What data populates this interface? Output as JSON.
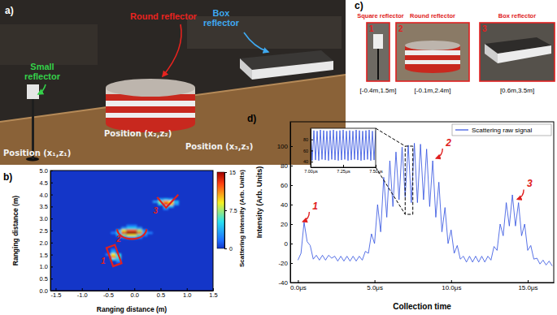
{
  "panel_labels": [
    "a)",
    "b)",
    "c)",
    "d)"
  ],
  "photo_a": {
    "reflectors": [
      {
        "text": "Small reflector",
        "color": "#35d04a"
      },
      {
        "text": "Round reflector",
        "color": "#e8231f"
      },
      {
        "text": "Box reflector",
        "color": "#3fa9f0"
      }
    ],
    "positions": [
      "Position (x₁,z₁)",
      "Position (x₂,z₂)",
      "Position (x₃,z₃)"
    ]
  },
  "photo_c": {
    "color": "#e02020",
    "items": [
      {
        "number": "1",
        "name": "Square reflector",
        "coordinates": "[-0.4m,1.5m]"
      },
      {
        "number": "2",
        "name": "Round reflector",
        "coordinates": "[-0.1m,2.4m]"
      },
      {
        "number": "3",
        "name": "Box reflector",
        "coordinates": "[0.6m,3.5m]"
      }
    ]
  },
  "chart_data": [
    {
      "type": "heatmap",
      "xlabel": "Ranging distance (m)",
      "ylabel": "Ranging distance (m)",
      "xlim": [
        -1.6,
        1.5
      ],
      "ylim": [
        0,
        5
      ],
      "xticks": [
        -1.5,
        {
          "value": -1,
          "label": "-1.0"
        },
        -0.5,
        {
          "value": 0,
          "label": "0.0"
        },
        0.5,
        {
          "value": 1,
          "label": "1.0"
        },
        1.5
      ],
      "yticks": [
        {
          "value": 0,
          "label": "0.0"
        },
        0.5,
        {
          "value": 1,
          "label": "1.0"
        },
        1.5,
        {
          "value": 2,
          "label": "2.0"
        },
        2.5,
        {
          "value": 3,
          "label": "3.0"
        },
        3.5,
        {
          "value": 4,
          "label": "4.0"
        },
        4.5,
        {
          "value": 5,
          "label": "5.0"
        }
      ],
      "cells": {
        "x": [
          -0.5,
          -0.4,
          -0.4,
          -0.4,
          -0.4,
          -0.4,
          -0.3,
          -0.3,
          -0.3,
          -0.3,
          -0.1,
          0,
          -0.2,
          -0.1,
          0,
          0.1,
          -0.3,
          -0.2,
          -0.1,
          0,
          0.1,
          0.2,
          -0.4,
          -0.3,
          -0.2,
          -0.1,
          0,
          0.1,
          0.2,
          0.3,
          -0.3,
          -0.2,
          -0.1,
          0,
          0.1,
          0.2,
          -0.2,
          -0.1,
          0,
          0.1,
          0.5,
          0.6,
          0.7,
          0.4,
          0.5,
          0.6,
          0.7,
          0.8,
          0.5,
          0.6,
          0.7,
          0.8,
          0.6,
          0.7,
          0.6
        ],
        "y": [
          1.5,
          1.7,
          1.6,
          1.5,
          1.4,
          1.3,
          1.5,
          1.4,
          1.3,
          1.2,
          2.7,
          2.7,
          2.6,
          2.6,
          2.6,
          2.6,
          2.5,
          2.5,
          2.5,
          2.5,
          2.5,
          2.5,
          2.4,
          2.4,
          2.4,
          2.4,
          2.4,
          2.4,
          2.4,
          2.4,
          2.3,
          2.3,
          2.3,
          2.3,
          2.3,
          2.3,
          2.2,
          2.2,
          2.2,
          2.2,
          3.8,
          3.8,
          3.8,
          3.7,
          3.7,
          3.7,
          3.7,
          3.7,
          3.6,
          3.6,
          3.6,
          3.6,
          3.5,
          3.5,
          3.4
        ],
        "values": [
          2,
          2,
          4,
          9,
          11,
          5,
          5,
          6,
          4,
          2,
          2,
          2,
          3,
          5,
          5,
          3,
          4,
          9,
          12,
          12,
          8,
          3,
          2,
          5,
          12,
          15,
          15,
          11,
          4,
          2,
          3,
          7,
          9,
          9,
          6,
          2,
          2,
          3,
          3,
          2,
          3,
          4,
          3,
          3,
          7,
          11,
          9,
          4,
          5,
          13,
          10,
          3,
          5,
          4,
          2
        ]
      },
      "colorbar": {
        "label": "Scattering intensity (Arb. Units)",
        "range": [
          0,
          15
        ],
        "ticks": [
          0,
          7.5,
          15
        ]
      },
      "annotations": [
        {
          "text": "1",
          "x": -0.55,
          "y": 1.25,
          "color": "#e02020"
        },
        {
          "text": "2",
          "x": -0.25,
          "y": 2.15,
          "color": "#e02020"
        },
        {
          "text": "3",
          "x": 0.45,
          "y": 3.35,
          "color": "#e02020"
        }
      ]
    },
    {
      "type": "line",
      "xlabel": "Collection time",
      "ylabel": "Intensity (Arb. Units)",
      "xlim": [
        -0.5,
        16.7
      ],
      "ylim": [
        -40,
        125
      ],
      "xticks": [
        {
          "value": 0,
          "label": "0.0μs"
        },
        {
          "value": 5,
          "label": "5.0μs"
        },
        {
          "value": 10,
          "label": "10.0μs"
        },
        {
          "value": 15,
          "label": "15.0μs"
        }
      ],
      "yticks": [
        -40,
        -20,
        0,
        20,
        40,
        60,
        80,
        100
      ],
      "legend": "upper right",
      "x": [
        0,
        0.2,
        0.4,
        0.6,
        0.8,
        1,
        1.2,
        1.4,
        1.6,
        1.8,
        2,
        2.2,
        2.4,
        2.6,
        2.8,
        3,
        3.2,
        3.4,
        3.6,
        3.8,
        4,
        4.2,
        4.4,
        4.6,
        4.8,
        5,
        5.2,
        5.4,
        5.6,
        5.8,
        6,
        6.2,
        6.4,
        6.6,
        6.8,
        7,
        7.2,
        7.4,
        7.6,
        7.8,
        8,
        8.2,
        8.4,
        8.6,
        8.8,
        9,
        9.2,
        9.4,
        9.6,
        9.8,
        10,
        10.2,
        10.4,
        10.6,
        10.8,
        11,
        11.2,
        11.4,
        11.6,
        11.8,
        12,
        12.2,
        12.4,
        12.6,
        12.8,
        13,
        13.2,
        13.4,
        13.6,
        13.8,
        14,
        14.2,
        14.4,
        14.6,
        14.8,
        15,
        15.2,
        15.4,
        15.6,
        15.8,
        16,
        16.2,
        16.4,
        16.6
      ],
      "series": [
        {
          "name": "Scattering raw signal",
          "color": "#2f4fe0",
          "line_style": "solid",
          "values": [
            -17,
            -10,
            22,
            2,
            -2,
            -16,
            -12,
            -17,
            -12,
            -17,
            -12,
            -15,
            -13,
            -18,
            -13,
            -18,
            -13,
            -18,
            -13,
            -18,
            -13,
            -17,
            -8,
            -10,
            10,
            0,
            40,
            12,
            68,
            27,
            85,
            38,
            94,
            45,
            99,
            48,
            101,
            42,
            103,
            42,
            102,
            45,
            97,
            38,
            85,
            27,
            63,
            12,
            37,
            0,
            14,
            -10,
            -2,
            -16,
            -13,
            -19,
            -13,
            -19,
            -13,
            -19,
            -13,
            -19,
            -13,
            -17,
            -3,
            -7,
            20,
            8,
            42,
            18,
            50,
            18,
            42,
            8,
            20,
            -7,
            -2,
            -16,
            -15,
            -21,
            -17,
            -22,
            -18,
            -23
          ]
        }
      ],
      "annotations": [
        {
          "text": "1",
          "x": 0.9,
          "y": 35,
          "color": "#e02020"
        },
        {
          "text": "2",
          "x": 9.6,
          "y": 100,
          "color": "#e02020"
        },
        {
          "text": "3",
          "x": 14.9,
          "y": 58,
          "color": "#e02020"
        }
      ]
    },
    {
      "type": "line",
      "xlim": [
        7,
        7.5
      ],
      "ylim": [
        30,
        100
      ],
      "xticks": [
        {
          "value": 7,
          "label": "7.00μs"
        },
        {
          "value": 7.25,
          "label": "7.25μs"
        },
        {
          "value": 7.5,
          "label": "7.50μs"
        }
      ],
      "yticks": [
        40,
        60,
        80
      ],
      "x": [
        7,
        7.0125,
        7.025,
        7.0375,
        7.05,
        7.0625,
        7.075,
        7.0875,
        7.1,
        7.1125,
        7.125,
        7.1375,
        7.15,
        7.1625,
        7.175,
        7.1875,
        7.2,
        7.2125,
        7.225,
        7.2375,
        7.25,
        7.2625,
        7.275,
        7.2875,
        7.3,
        7.3125,
        7.325,
        7.3375,
        7.35,
        7.3625,
        7.375,
        7.3875,
        7.4,
        7.4125,
        7.425,
        7.4375,
        7.45,
        7.4625,
        7.475,
        7.4875,
        7.5
      ],
      "series": [
        {
          "color": "#2f4fe0",
          "line_style": "solid",
          "values": [
            95,
            42,
            96,
            43,
            95,
            42,
            97,
            44,
            96,
            43,
            95,
            42,
            96,
            44,
            97,
            43,
            95,
            42,
            96,
            43,
            97,
            44,
            95,
            42,
            96,
            43,
            95,
            44,
            97,
            43,
            96,
            42,
            95,
            43,
            96,
            44,
            97,
            42,
            95,
            43,
            96
          ]
        }
      ]
    }
  ]
}
